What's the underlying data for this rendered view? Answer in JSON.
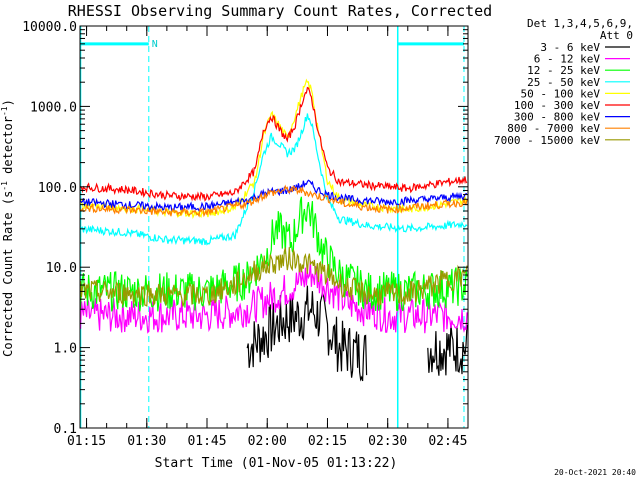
{
  "chart_data": {
    "type": "line",
    "title": "RHESSI Observing Summary Count Rates, Corrected",
    "xlabel": "Start Time (01-Nov-05 01:13:22)",
    "ylabel": "Corrected Count Rate (s⁻¹ detector⁻¹)",
    "ylabel_main": "Corrected Count Rate (s",
    "ylabel_sup1": "-1",
    "ylabel_mid": " detector",
    "ylabel_sup2": "-1",
    "ylabel_end": ")",
    "y_scale": "log",
    "ylim": [
      0.1,
      10000
    ],
    "xlim": [
      "01:13:22",
      "02:50:00"
    ],
    "xticks": [
      "01:15",
      "01:30",
      "01:45",
      "02:00",
      "02:15",
      "02:30",
      "02:45"
    ],
    "yticks": [
      "0.1",
      "1.0",
      "10.0",
      "100.0",
      "1000.0",
      "10000.0"
    ],
    "legend": {
      "placement": "right",
      "header_lines": [
        "Det 1,3,4,5,6,9,",
        "Att 0"
      ]
    },
    "series": [
      {
        "name": "3 - 6 keV",
        "color": "#000000",
        "x": [
          "01:13",
          "01:20",
          "01:40",
          "01:52",
          "01:55",
          "02:00",
          "02:04",
          "02:08",
          "02:11",
          "02:14",
          "02:18",
          "02:25",
          "02:35",
          "02:40",
          "02:50"
        ],
        "y": [
          0,
          0,
          0,
          0,
          1.0,
          1.5,
          2.2,
          2.5,
          3.0,
          2.2,
          1.0,
          0.8,
          0,
          1.0,
          1.0
        ]
      },
      {
        "name": "6 - 12 keV",
        "color": "#ff00ff",
        "x": [
          "01:13",
          "01:30",
          "01:45",
          "01:55",
          "02:00",
          "02:04",
          "02:08",
          "02:11",
          "02:14",
          "02:20",
          "02:30",
          "02:50"
        ],
        "y": [
          2.5,
          2.5,
          2.5,
          3.0,
          4.0,
          5.0,
          6.5,
          8.5,
          6.5,
          3.5,
          2.5,
          2.5
        ]
      },
      {
        "name": "12 - 25 keV",
        "color": "#00ff00",
        "x": [
          "01:13",
          "01:30",
          "01:45",
          "01:55",
          "02:00",
          "02:02",
          "02:04",
          "02:06",
          "02:08",
          "02:10",
          "02:12",
          "02:14",
          "02:18",
          "02:25",
          "02:35",
          "02:45",
          "02:50"
        ],
        "y": [
          5.0,
          5.0,
          5.0,
          7.0,
          15,
          30,
          26,
          20,
          40,
          58,
          32,
          15,
          8.0,
          5.0,
          5.0,
          5.5,
          6.0
        ]
      },
      {
        "name": "25 - 50 keV",
        "color": "#00ffff",
        "x": [
          "01:13",
          "01:25",
          "01:35",
          "01:45",
          "01:52",
          "01:57",
          "01:59",
          "02:01",
          "02:03",
          "02:05",
          "02:07",
          "02:09",
          "02:10",
          "02:11",
          "02:13",
          "02:15",
          "02:18",
          "02:25",
          "02:35",
          "02:45",
          "02:50"
        ],
        "y": [
          30,
          27,
          22,
          21,
          25,
          100,
          250,
          420,
          340,
          260,
          300,
          560,
          800,
          620,
          200,
          70,
          40,
          33,
          30,
          33,
          35
        ]
      },
      {
        "name": "50 - 100 keV",
        "color": "#ffff00",
        "x": [
          "01:13",
          "01:25",
          "01:35",
          "01:45",
          "01:52",
          "01:57",
          "01:59",
          "02:01",
          "02:03",
          "02:05",
          "02:07",
          "02:09",
          "02:10",
          "02:11",
          "02:13",
          "02:15",
          "02:18",
          "02:25",
          "02:35",
          "02:45",
          "02:50"
        ],
        "y": [
          60,
          55,
          48,
          46,
          55,
          120,
          420,
          800,
          580,
          400,
          780,
          1600,
          2000,
          1600,
          420,
          120,
          70,
          58,
          52,
          62,
          70
        ]
      },
      {
        "name": "100 - 300 keV",
        "color": "#ff0000",
        "x": [
          "01:13",
          "01:25",
          "01:35",
          "01:45",
          "01:52",
          "01:57",
          "01:59",
          "02:01",
          "02:03",
          "02:05",
          "02:07",
          "02:09",
          "02:10",
          "02:11",
          "02:13",
          "02:15",
          "02:18",
          "02:25",
          "02:35",
          "02:45",
          "02:50"
        ],
        "y": [
          100,
          92,
          78,
          75,
          85,
          160,
          500,
          760,
          520,
          380,
          600,
          1300,
          1600,
          1300,
          420,
          170,
          115,
          105,
          95,
          115,
          125
        ]
      },
      {
        "name": "300 - 800 keV",
        "color": "#0000ff",
        "x": [
          "01:13",
          "01:25",
          "01:35",
          "01:45",
          "01:55",
          "02:00",
          "02:05",
          "02:08",
          "02:10",
          "02:12",
          "02:15",
          "02:20",
          "02:30",
          "02:40",
          "02:50"
        ],
        "y": [
          65,
          60,
          55,
          57,
          68,
          85,
          90,
          100,
          115,
          95,
          80,
          70,
          65,
          70,
          78
        ]
      },
      {
        "name": "800 - 7000 keV",
        "color": "#ff8000",
        "x": [
          "01:13",
          "01:25",
          "01:35",
          "01:45",
          "01:55",
          "02:00",
          "02:05",
          "02:08",
          "02:10",
          "02:12",
          "02:15",
          "02:20",
          "02:30",
          "02:40",
          "02:50"
        ],
        "y": [
          55,
          52,
          48,
          48,
          62,
          82,
          92,
          90,
          85,
          78,
          72,
          60,
          52,
          58,
          65
        ]
      },
      {
        "name": "7000 - 15000 keV",
        "color": "#999900",
        "x": [
          "01:13",
          "01:25",
          "01:35",
          "01:45",
          "01:52",
          "01:57",
          "02:02",
          "02:06",
          "02:10",
          "02:14",
          "02:20",
          "02:25",
          "02:35",
          "02:45",
          "02:50"
        ],
        "y": [
          5.0,
          4.8,
          4.5,
          4.5,
          6.0,
          9.0,
          11.5,
          13.0,
          11.0,
          8.5,
          5.5,
          4.6,
          4.6,
          7.0,
          8.0
        ]
      }
    ],
    "annotations": {
      "attenuator_flag": "N",
      "timestamp": "20-Oct-2021 20:40",
      "solid_vertical_lines": [
        "01:13:30",
        "02:32:30"
      ],
      "dashed_vertical_lines": [
        "01:30:30",
        "02:49:00"
      ],
      "flag_bars": [
        {
          "from": "01:13:30",
          "to": "01:30:30",
          "level": 6000
        },
        {
          "from": "02:32:30",
          "to": "02:49:00",
          "level": 6000
        }
      ]
    }
  }
}
